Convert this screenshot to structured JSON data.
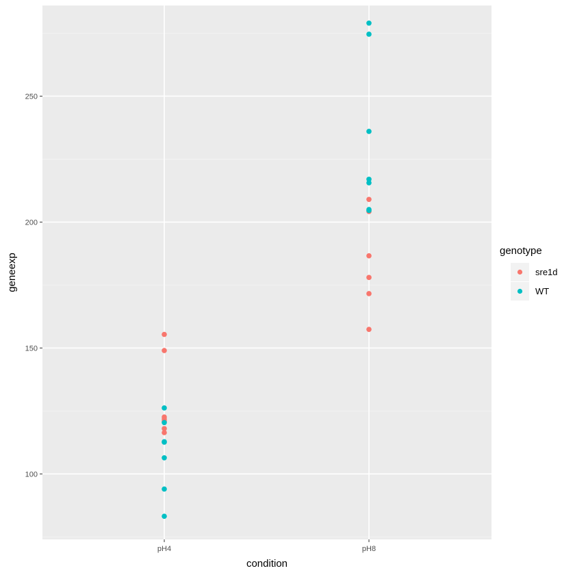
{
  "chart_data": {
    "type": "scatter",
    "xlabel": "condition",
    "ylabel": "geneexp",
    "categories": [
      "pH4",
      "pH8"
    ],
    "y_ticks": [
      100,
      150,
      200,
      250
    ],
    "ylim": [
      74,
      286
    ],
    "grid": true,
    "legend": {
      "title": "genotype",
      "placement": "right"
    },
    "series": [
      {
        "name": "sre1d",
        "color": "#F8766D",
        "points": [
          {
            "x": "pH4",
            "y": 155.4
          },
          {
            "x": "pH4",
            "y": 149.0
          },
          {
            "x": "pH4",
            "y": 122.6
          },
          {
            "x": "pH4",
            "y": 121.8
          },
          {
            "x": "pH4",
            "y": 121.0
          },
          {
            "x": "pH4",
            "y": 118.0
          },
          {
            "x": "pH4",
            "y": 116.4
          },
          {
            "x": "pH8",
            "y": 209.0
          },
          {
            "x": "pH8",
            "y": 204.2
          },
          {
            "x": "pH8",
            "y": 186.6
          },
          {
            "x": "pH8",
            "y": 178.0
          },
          {
            "x": "pH8",
            "y": 171.6
          },
          {
            "x": "pH8",
            "y": 157.4
          }
        ]
      },
      {
        "name": "WT",
        "color": "#00BFC4",
        "points": [
          {
            "x": "pH4",
            "y": 126.2
          },
          {
            "x": "pH4",
            "y": 120.4
          },
          {
            "x": "pH4",
            "y": 112.8
          },
          {
            "x": "pH4",
            "y": 112.6
          },
          {
            "x": "pH4",
            "y": 106.4
          },
          {
            "x": "pH4",
            "y": 94.0
          },
          {
            "x": "pH4",
            "y": 83.2
          },
          {
            "x": "pH8",
            "y": 279.0
          },
          {
            "x": "pH8",
            "y": 274.6
          },
          {
            "x": "pH8",
            "y": 236.0
          },
          {
            "x": "pH8",
            "y": 217.0
          },
          {
            "x": "pH8",
            "y": 215.6
          },
          {
            "x": "pH8",
            "y": 205.0
          },
          {
            "x": "pH8",
            "y": 204.6
          }
        ]
      }
    ]
  }
}
